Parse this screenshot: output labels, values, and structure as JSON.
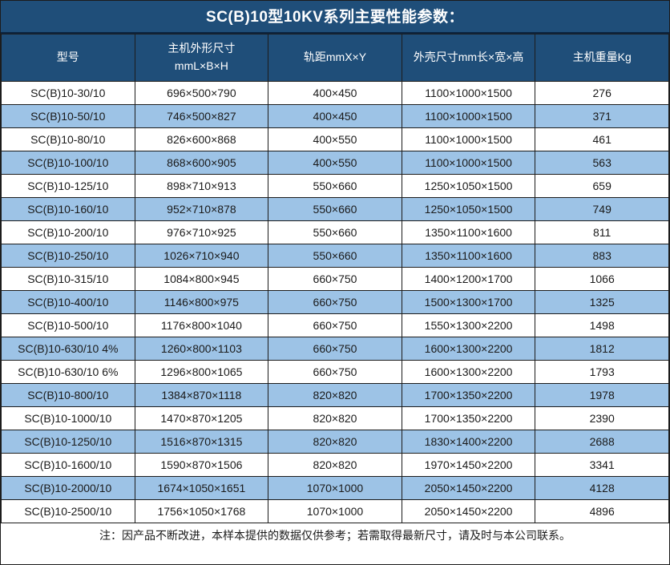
{
  "title": "SC(B)10型10KV系列主要性能参数：",
  "colors": {
    "header_bg": "#1F4E79",
    "alt_row_bg": "#9DC3E6",
    "row_bg": "#FFFFFF",
    "header_text": "#FFFFFF",
    "body_text": "#1A1A1A",
    "border": "#1C1C1C"
  },
  "table": {
    "columns": [
      {
        "id": "model",
        "label_lines": [
          "型号"
        ]
      },
      {
        "id": "unit-size",
        "label_lines": [
          "主机外形尺寸",
          "mmL×B×H"
        ]
      },
      {
        "id": "track-gauge",
        "label_lines": [
          "轨距mmX×Y"
        ]
      },
      {
        "id": "shell-size",
        "label_lines": [
          "外壳尺寸mm长×宽×高"
        ]
      },
      {
        "id": "weight",
        "label_lines": [
          "主机重量Kg"
        ]
      }
    ],
    "rows": [
      [
        "SC(B)10-30/10",
        "696×500×790",
        "400×450",
        "1100×1000×1500",
        "276"
      ],
      [
        "SC(B)10-50/10",
        "746×500×827",
        "400×450",
        "1100×1000×1500",
        "371"
      ],
      [
        "SC(B)10-80/10",
        "826×600×868",
        "400×550",
        "1100×1000×1500",
        "461"
      ],
      [
        "SC(B)10-100/10",
        "868×600×905",
        "400×550",
        "1100×1000×1500",
        "563"
      ],
      [
        "SC(B)10-125/10",
        "898×710×913",
        "550×660",
        "1250×1050×1500",
        "659"
      ],
      [
        "SC(B)10-160/10",
        "952×710×878",
        "550×660",
        "1250×1050×1500",
        "749"
      ],
      [
        "SC(B)10-200/10",
        "976×710×925",
        "550×660",
        "1350×1100×1600",
        "811"
      ],
      [
        "SC(B)10-250/10",
        "1026×710×940",
        "550×660",
        "1350×1100×1600",
        "883"
      ],
      [
        "SC(B)10-315/10",
        "1084×800×945",
        "660×750",
        "1400×1200×1700",
        "1066"
      ],
      [
        "SC(B)10-400/10",
        "1146×800×975",
        "660×750",
        "1500×1300×1700",
        "1325"
      ],
      [
        "SC(B)10-500/10",
        "1176×800×1040",
        "660×750",
        "1550×1300×2200",
        "1498"
      ],
      [
        "SC(B)10-630/10 4%",
        "1260×800×1103",
        "660×750",
        "1600×1300×2200",
        "1812"
      ],
      [
        "SC(B)10-630/10 6%",
        "1296×800×1065",
        "660×750",
        "1600×1300×2200",
        "1793"
      ],
      [
        "SC(B)10-800/10",
        "1384×870×1118",
        "820×820",
        "1700×1350×2200",
        "1978"
      ],
      [
        "SC(B)10-1000/10",
        "1470×870×1205",
        "820×820",
        "1700×1350×2200",
        "2390"
      ],
      [
        "SC(B)10-1250/10",
        "1516×870×1315",
        "820×820",
        "1830×1400×2200",
        "2688"
      ],
      [
        "SC(B)10-1600/10",
        "1590×870×1506",
        "820×820",
        "1970×1450×2200",
        "3341"
      ],
      [
        "SC(B)10-2000/10",
        "1674×1050×1651",
        "1070×1000",
        "2050×1450×2200",
        "4128"
      ],
      [
        "SC(B)10-2500/10",
        "1756×1050×1768",
        "1070×1000",
        "2050×1450×2200",
        "4896"
      ]
    ]
  },
  "note": "注：因产品不断改进，本样本提供的数据仅供参考；若需取得最新尺寸，请及时与本公司联系。"
}
